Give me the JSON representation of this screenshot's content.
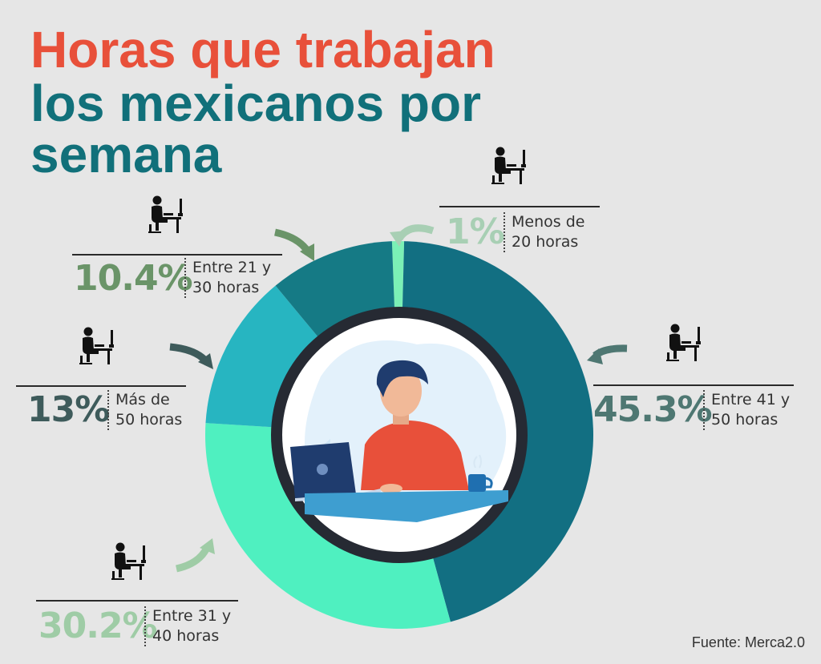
{
  "title": {
    "line1": "Horas que trabajan",
    "line2": "los mexicanos por",
    "line3": "semana"
  },
  "source": "Fuente: Merca2.0",
  "colors": {
    "title_red": "#e8503a",
    "title_teal": "#11707a",
    "slice_41_50": "#126f82",
    "slice_31_40": "#4ff0c0",
    "slice_mas_50": "#27b5c1",
    "slice_21_30": "#157a85",
    "slice_menos_20": "#7bf0b6"
  },
  "chart_data": {
    "type": "pie",
    "slices": [
      {
        "label": "Menos de 20 horas",
        "line1": "Menos de",
        "line2": "20 horas",
        "value": 1,
        "value_label": "1%",
        "color": "#7bf0b6",
        "label_color": "#a8cfb4"
      },
      {
        "label": "Entre 41 y 50 horas",
        "line1": "Entre 41 y",
        "line2": "50 horas",
        "value": 45.3,
        "value_label": "45.3%",
        "color": "#126f82",
        "label_color": "#4e7772"
      },
      {
        "label": "Entre 31 y 40 horas",
        "line1": "Entre 31 y",
        "line2": "40 horas",
        "value": 30.2,
        "value_label": "30.2%",
        "color": "#4ff0c0",
        "label_color": "#9fcca6"
      },
      {
        "label": "Más de 50 horas",
        "line1": "Más de",
        "line2": "50 horas",
        "value": 13,
        "value_label": "13%",
        "color": "#27b5c1",
        "label_color": "#3e5b5b"
      },
      {
        "label": "Entre 21 y 30 horas",
        "line1": "Entre 21 y",
        "line2": "30 horas",
        "value": 10.4,
        "value_label": "10.4%",
        "color": "#157a85",
        "label_color": "#6a9468"
      }
    ]
  }
}
